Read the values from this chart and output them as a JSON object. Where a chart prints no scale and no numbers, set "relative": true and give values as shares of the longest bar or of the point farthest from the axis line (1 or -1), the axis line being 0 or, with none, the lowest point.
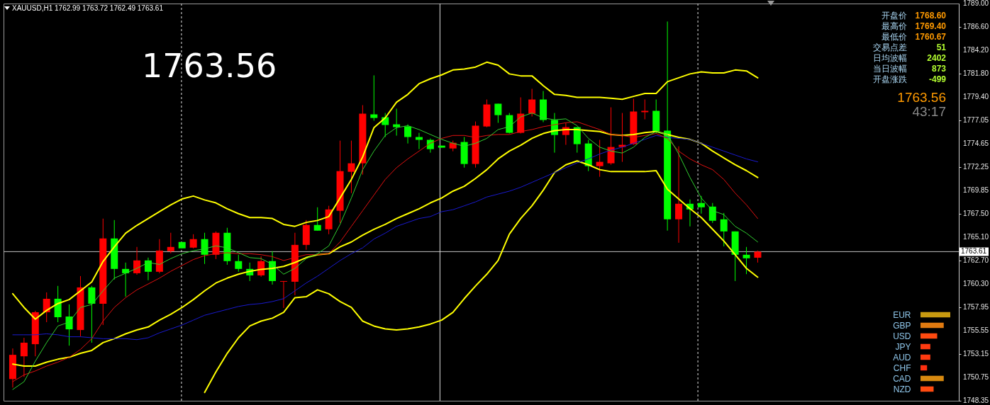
{
  "chart_data": [
    {
      "type": "candlestick",
      "title": "XAUUSD,H1  1762.99 1763.72 1762.49 1763.61",
      "annotations": [
        "1763.56",
        "开盘价",
        "1768.60",
        "最高价",
        "1769.40",
        "最低价",
        "1760.67",
        "交易点差",
        "51",
        "日均波幅",
        "2402",
        "当日波幅",
        "873",
        "开盘涨跌",
        "-499",
        "1763.56",
        "43:17"
      ],
      "categories": [
        null,
        null,
        null,
        null,
        null,
        null,
        null,
        null,
        null,
        null,
        null,
        null,
        null,
        null,
        null,
        null,
        null,
        null,
        null,
        null,
        null,
        null,
        null,
        null,
        null,
        null,
        null,
        null,
        null,
        null,
        null,
        null,
        null,
        null,
        null,
        null,
        null,
        null,
        null,
        null,
        null,
        null,
        null,
        null,
        null,
        null,
        null,
        null,
        null,
        null,
        null,
        null,
        null,
        null,
        null,
        null,
        null,
        null,
        null,
        null,
        null,
        null,
        null,
        null,
        null,
        null,
        null
      ],
      "ohlc": [
        [
          1750.57,
          1753.7,
          1749.7,
          1753.05
        ],
        [
          1752.9,
          1754.79,
          1750.79,
          1754.29
        ],
        [
          1754.14,
          1757.56,
          1752.9,
          1757.41
        ],
        [
          1757.41,
          1759.44,
          1756.39,
          1758.79
        ],
        [
          1758.79,
          1760.1,
          1756.39,
          1756.9
        ],
        [
          1756.97,
          1758.21,
          1753.99,
          1755.66
        ],
        [
          1755.59,
          1761.11,
          1754.94,
          1759.95
        ],
        [
          1759.95,
          1760.1,
          1754.29,
          1758.28
        ],
        [
          1758.28,
          1766.99,
          1756.1,
          1764.96
        ],
        [
          1764.96,
          1766.84,
          1760.75,
          1761.84
        ],
        [
          1761.84,
          1762.49,
          1759.01,
          1761.4
        ],
        [
          1761.4,
          1764.09,
          1761.25,
          1762.71
        ],
        [
          1762.71,
          1763.0,
          1760.68,
          1761.55
        ],
        [
          1761.55,
          1764.89,
          1761.4,
          1763.72
        ],
        [
          1763.65,
          1765.54,
          1763.44,
          1764.09
        ],
        [
          1764.6,
          1764.6,
          1763.94,
          1763.94
        ],
        [
          1764.02,
          1765.39,
          1763.94,
          1764.89
        ],
        [
          1764.89,
          1765.54,
          1762.35,
          1763.29
        ],
        [
          1763.29,
          1765.68,
          1762.85,
          1765.54
        ],
        [
          1765.54,
          1766.05,
          1762.27,
          1762.64
        ],
        [
          1762.64,
          1763.29,
          1761.55,
          1761.84
        ],
        [
          1761.84,
          1762.49,
          1760.6,
          1761.18
        ],
        [
          1761.18,
          1763.14,
          1761.04,
          1762.64
        ],
        [
          1762.64,
          1763.65,
          1760.24,
          1760.6
        ],
        [
          1760.53,
          1760.6,
          1757.85,
          1760.6
        ],
        [
          1760.53,
          1765.54,
          1759.15,
          1764.3
        ],
        [
          1764.3,
          1766.84,
          1763.8,
          1766.34
        ],
        [
          1766.34,
          1768.15,
          1765.76,
          1765.76
        ],
        [
          1765.9,
          1768.3,
          1765.39,
          1767.93
        ],
        [
          1767.79,
          1774.97,
          1766.55,
          1771.85
        ],
        [
          1771.78,
          1774.97,
          1769.6,
          1772.65
        ],
        [
          1772.65,
          1778.6,
          1771.49,
          1777.73
        ],
        [
          1777.66,
          1781.65,
          1777.0,
          1777.29
        ],
        [
          1777.37,
          1777.8,
          1775.34,
          1776.57
        ],
        [
          1776.64,
          1778.24,
          1775.48,
          1776.35
        ],
        [
          1776.42,
          1776.64,
          1774.68,
          1775.34
        ],
        [
          1775.34,
          1775.77,
          1774.1,
          1775.05
        ],
        [
          1775.05,
          1775.19,
          1773.74,
          1774.1
        ],
        [
          1774.46,
          1774.46,
          1774.25,
          1774.25
        ],
        [
          1774.17,
          1774.97,
          1773.88,
          1774.75
        ],
        [
          1774.83,
          1775.34,
          1772.21,
          1772.58
        ],
        [
          1772.58,
          1776.93,
          1772.21,
          1776.5
        ],
        [
          1776.42,
          1779.18,
          1776.35,
          1778.67
        ],
        [
          1778.75,
          1778.75,
          1776.79,
          1777.58
        ],
        [
          1777.58,
          1777.8,
          1775.7,
          1775.77
        ],
        [
          1775.77,
          1779.4,
          1775.7,
          1777.73
        ],
        [
          1777.73,
          1780.27,
          1777.44,
          1779.18
        ],
        [
          1779.18,
          1780.05,
          1776.86,
          1777.08
        ],
        [
          1777.08,
          1777.8,
          1773.74,
          1775.55
        ],
        [
          1775.55,
          1776.79,
          1774.54,
          1776.35
        ],
        [
          1776.35,
          1776.35,
          1773.74,
          1774.61
        ],
        [
          1774.68,
          1775.05,
          1771.85,
          1772.36
        ],
        [
          1772.36,
          1775.05,
          1771.27,
          1772.8
        ],
        [
          1772.65,
          1778.38,
          1772.5,
          1774.32
        ],
        [
          1774.32,
          1777.8,
          1772.8,
          1774.54
        ],
        [
          1774.61,
          1779.25,
          1774.54,
          1777.95
        ],
        [
          1777.88,
          1779.18,
          1777.15,
          1778.02
        ],
        [
          1778.02,
          1779.18,
          1775.7,
          1775.92
        ],
        [
          1775.99,
          1787.16,
          1765.76,
          1766.92
        ],
        [
          1766.92,
          1774.39,
          1764.52,
          1768.51
        ],
        [
          1768.51,
          1768.95,
          1766.19,
          1767.93
        ],
        [
          1768.59,
          1769.31,
          1767.5,
          1768.15
        ],
        [
          1768.22,
          1768.59,
          1766.55,
          1766.77
        ],
        [
          1766.92,
          1767.57,
          1764.15,
          1765.68
        ],
        [
          1765.68,
          1765.68,
          1760.6,
          1763.29
        ],
        [
          1763.29,
          1764.09,
          1761.31,
          1762.93
        ],
        [
          1762.99,
          1763.72,
          1762.49,
          1763.61
        ]
      ],
      "colors": [
        "#ff0000",
        "#ff0000",
        "#ff0000",
        "#ff0000",
        "#00ff00",
        "#00ff00",
        "#ff0000",
        "#00ff00",
        "#ff0000",
        "#00ff00",
        "#00ff00",
        "#ff0000",
        "#00ff00",
        "#ff0000",
        "#ff0000",
        "#00ff00",
        "#ff0000",
        "#00ff00",
        "#ff0000",
        "#00ff00",
        "#00ff00",
        "#00ff00",
        "#ff0000",
        "#00ff00",
        "#ff0000",
        "#ff0000",
        "#ff0000",
        "#00ff00",
        "#ff0000",
        "#ff0000",
        "#ff0000",
        "#ff0000",
        "#00ff00",
        "#00ff00",
        "#00ff00",
        "#00ff00",
        "#00ff00",
        "#00ff00",
        "#00ff00",
        "#ff0000",
        "#00ff00",
        "#ff0000",
        "#ff0000",
        "#00ff00",
        "#00ff00",
        "#ff0000",
        "#ff0000",
        "#00ff00",
        "#00ff00",
        "#ff0000",
        "#00ff00",
        "#00ff00",
        "#ff0000",
        "#ff0000",
        "#ff0000",
        "#ff0000",
        "#ff0000",
        "#00ff00",
        "#00ff00",
        "#ff0000",
        "#00ff00",
        "#00ff00",
        "#00ff00",
        "#00ff00",
        "#00ff00",
        "#00ff00",
        "#ff0000"
      ],
      "series": [
        {
          "type": "line",
          "color": "#ffff00",
          "values": [
            1759.3,
            1757.9,
            1756.7,
            1757.6,
            1758.3,
            1758.7,
            1759.6,
            1760.5,
            1762.6,
            1764.1,
            1765.5,
            1766.3,
            1767.0,
            1767.7,
            1768.4,
            1769.0,
            1769.3,
            1768.9,
            1768.6,
            1768.0,
            1767.5,
            1767.1,
            1767.1,
            1767.0,
            1766.4,
            1766.2,
            1766.6,
            1766.8,
            1767.2,
            1769.1,
            1771.0,
            1773.3,
            1776.3,
            1777.3,
            1778.9,
            1779.7,
            1780.8,
            1781.3,
            1781.7,
            1782.2,
            1782.3,
            1782.5,
            1783.0,
            1782.7,
            1781.8,
            1781.6,
            1781.6,
            1780.6,
            1779.7,
            1779.6,
            1779.4,
            1779.4,
            1779.4,
            1779.3,
            1779.2,
            1779.5,
            1779.8,
            1779.8,
            1781.0,
            1781.4,
            1781.8,
            1782.0,
            1781.9,
            1781.9,
            1782.2,
            1782.1,
            1781.4
          ]
        },
        {
          "type": "line",
          "color": "#ffff00",
          "values": [
            1752.1,
            1751.9,
            1751.9,
            1752.3,
            1752.6,
            1752.8,
            1753.2,
            1753.5,
            1754.3,
            1754.7,
            1755.2,
            1755.6,
            1755.9,
            1756.6,
            1757.2,
            1757.9,
            1758.7,
            1759.6,
            1760.4,
            1760.9,
            1761.3,
            1761.6,
            1761.8,
            1761.9,
            1762.1,
            1762.5,
            1763.0,
            1763.3,
            1763.4,
            1764.1,
            1764.6,
            1765.3,
            1765.9,
            1766.4,
            1767.0,
            1767.5,
            1768.0,
            1768.6,
            1769.1,
            1769.8,
            1770.3,
            1771.1,
            1772.0,
            1773.1,
            1773.9,
            1774.5,
            1775.2,
            1775.7,
            1776.0,
            1776.1,
            1776.1,
            1776.0,
            1775.9,
            1775.6,
            1775.5,
            1775.6,
            1775.8,
            1775.9,
            1775.6,
            1775.3,
            1775.1,
            1774.7,
            1773.9,
            1773.2,
            1772.5,
            1771.9,
            1771.2
          ]
        },
        {
          "type": "line",
          "color": "#ffff00",
          "values": [
            null,
            null,
            null,
            null,
            null,
            null,
            null,
            null,
            null,
            null,
            null,
            null,
            null,
            null,
            null,
            null,
            null,
            1749.2,
            1751.3,
            1753.2,
            1754.8,
            1756.0,
            1756.5,
            1756.8,
            1757.4,
            1758.9,
            1759.0,
            1759.7,
            1759.3,
            1758.5,
            1757.9,
            1756.5,
            1756.0,
            1755.7,
            1755.6,
            1755.7,
            1755.9,
            1756.2,
            1756.6,
            1757.4,
            1758.8,
            1760.1,
            1761.3,
            1762.7,
            1765.4,
            1767.0,
            1768.3,
            1769.9,
            1771.7,
            1772.5,
            1772.9,
            1772.5,
            1772.0,
            1771.8,
            1771.8,
            1771.8,
            1771.8,
            1771.9,
            1770.0,
            1769.0,
            1768.0,
            1767.1,
            1765.9,
            1764.7,
            1763.3,
            1761.9,
            1761.0
          ]
        },
        {
          "type": "line",
          "color": "#1a1ad0",
          "values": [
            1755.1,
            1755.1,
            1755.1,
            1755.2,
            1755.1,
            1754.9,
            1754.9,
            1754.8,
            1754.7,
            1754.7,
            1754.7,
            1754.6,
            1754.8,
            1755.3,
            1755.7,
            1756.1,
            1756.6,
            1757.1,
            1757.4,
            1757.7,
            1758.0,
            1758.2,
            1758.3,
            1758.5,
            1758.8,
            1759.6,
            1760.4,
            1761.1,
            1761.9,
            1762.7,
            1763.4,
            1764.0,
            1764.9,
            1765.5,
            1766.2,
            1766.6,
            1767.0,
            1767.2,
            1767.7,
            1767.9,
            1768.3,
            1768.7,
            1769.2,
            1769.5,
            1769.8,
            1770.2,
            1770.7,
            1771.2,
            1771.7,
            1772.2,
            1772.7,
            1773.1,
            1773.6,
            1774.0,
            1774.3,
            1774.7,
            1775.1,
            1775.5,
            1775.3,
            1775.2,
            1775.1,
            1774.7,
            1774.3,
            1773.9,
            1773.5,
            1773.1,
            1772.8
          ]
        },
        {
          "type": "line",
          "color": "#e01010",
          "values": [
            1750.3,
            1751.0,
            1751.4,
            1751.9,
            1752.3,
            1752.8,
            1753.6,
            1754.7,
            1756.5,
            1757.9,
            1758.9,
            1759.7,
            1760.3,
            1760.9,
            1761.6,
            1762.2,
            1762.8,
            1763.2,
            1763.4,
            1763.5,
            1763.4,
            1763.4,
            1763.3,
            1763.1,
            1762.7,
            1763.0,
            1763.3,
            1763.3,
            1763.4,
            1764.6,
            1766.2,
            1767.8,
            1769.4,
            1771.0,
            1772.2,
            1773.1,
            1773.9,
            1774.7,
            1775.2,
            1775.5,
            1775.5,
            1775.3,
            1775.5,
            1775.6,
            1775.6,
            1775.9,
            1776.1,
            1776.4,
            1776.6,
            1776.8,
            1776.9,
            1776.5,
            1776.1,
            1775.6,
            1775.5,
            1775.3,
            1775.5,
            1775.7,
            1775.2,
            1773.9,
            1773.1,
            1772.5,
            1772.0,
            1771.0,
            1769.6,
            1768.4,
            1767.0
          ]
        },
        {
          "type": "line",
          "color": "#30d030",
          "values": [
            1749.5,
            1750.3,
            1752.4,
            1754.3,
            1756.0,
            1756.4,
            1757.9,
            1758.2,
            1759.6,
            1760.9,
            1761.4,
            1761.9,
            1762.5,
            1762.3,
            1762.9,
            1763.4,
            1763.7,
            1763.9,
            1764.2,
            1764.0,
            1763.5,
            1763.0,
            1762.9,
            1762.3,
            1761.3,
            1761.9,
            1762.9,
            1763.4,
            1764.2,
            1766.4,
            1769.1,
            1772.0,
            1773.9,
            1775.5,
            1776.3,
            1776.5,
            1776.1,
            1775.6,
            1775.1,
            1774.7,
            1774.4,
            1774.7,
            1775.2,
            1776.1,
            1776.4,
            1777.4,
            1777.8,
            1777.3,
            1777.1,
            1777.2,
            1776.5,
            1775.2,
            1774.3,
            1773.9,
            1773.7,
            1774.3,
            1775.3,
            1775.9,
            1775.6,
            1773.6,
            1771.2,
            1769.1,
            1767.8,
            1767.4,
            1766.2,
            1765.5,
            1764.6
          ]
        }
      ],
      "ylim": [
        1748.35,
        1789.0
      ],
      "yticks": [
        {
          "value": 1789,
          "label": "1789.00"
        },
        {
          "value": 1786.6,
          "label": "1786.60"
        },
        {
          "value": 1784.2,
          "label": "1784.20"
        },
        {
          "value": 1781.8,
          "label": "1781.80"
        },
        {
          "value": 1779.4,
          "label": "1779.40"
        },
        1777.05,
        1774.65,
        1772.25,
        1769.85,
        {
          "value": 1767.5,
          "label": "1767.50"
        },
        {
          "value": 1765.1,
          "label": "1765.10"
        },
        {
          "value": 1762.7,
          "label": "1762.70"
        },
        {
          "value": 1760.3,
          "label": "1760.30"
        },
        1757.95,
        1755.55,
        1753.15,
        1750.75,
        1748.35
      ],
      "ref_lines": [
        {
          "axis": "y",
          "value": 1763.61,
          "label": "1763.61",
          "color": "#c0c0c0"
        }
      ],
      "tick_labels": "y"
    },
    {
      "type": "bar",
      "orientation": "horizontal",
      "relative": true,
      "categories": [
        "EUR",
        "GBP",
        "USD",
        "JPY",
        "AUD",
        "CHF",
        "CAD",
        "NZD"
      ],
      "values": [
        1,
        0.78,
        0.56,
        0.33,
        0.33,
        0.22,
        0.78,
        0.44
      ],
      "colors": [
        "#c89a10",
        "#e07a10",
        "#ff4a10",
        "#ff3a10",
        "#ff3a10",
        "#ff3010",
        "#d88a10",
        "#ff4a10"
      ]
    }
  ]
}
